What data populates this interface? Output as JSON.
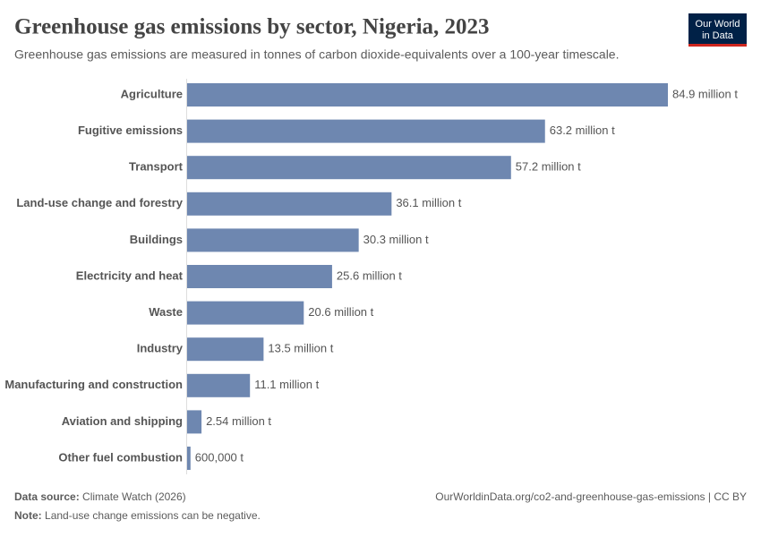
{
  "logo": [
    "Our World",
    "in Data"
  ],
  "chart_data": {
    "type": "bar",
    "title": "Greenhouse gas emissions by sector, Nigeria, 2023",
    "subtitle": "Greenhouse gas emissions are measured in tonnes of carbon dioxide-equivalents over a 100-year timescale.",
    "categories": [
      "Agriculture",
      "Fugitive emissions",
      "Transport",
      "Land-use change and forestry",
      "Buildings",
      "Electricity and heat",
      "Waste",
      "Industry",
      "Manufacturing and construction",
      "Aviation and shipping",
      "Other fuel combustion"
    ],
    "values": [
      84900000,
      63200000,
      57200000,
      36100000,
      30300000,
      25600000,
      20600000,
      13500000,
      11100000,
      2540000,
      600000
    ],
    "value_labels": [
      "84.9 million t",
      "63.2 million t",
      "57.2 million t",
      "36.1 million t",
      "30.3 million t",
      "25.6 million t",
      "20.6 million t",
      "13.5 million t",
      "11.1 million t",
      "2.54 million t",
      "600,000 t"
    ],
    "color": "#6e87b0"
  },
  "footer": {
    "source_label": "Data source:",
    "source": "Climate Watch (2026)",
    "url": "OurWorldinData.org/co2-and-greenhouse-gas-emissions | CC BY",
    "note_label": "Note:",
    "note": "Land-use change emissions can be negative."
  }
}
